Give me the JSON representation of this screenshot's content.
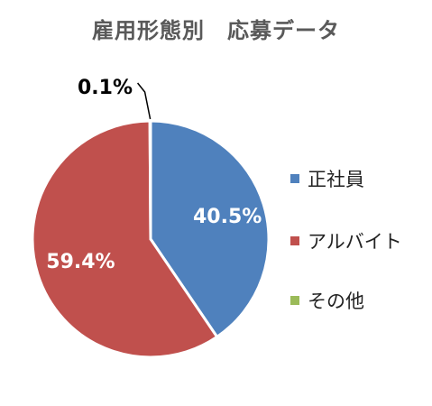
{
  "chart_data": {
    "type": "pie",
    "title": "雇用形態別　応募データ",
    "categories": [
      "正社員",
      "アルバイト",
      "その他"
    ],
    "values": [
      40.5,
      59.4,
      0.1
    ],
    "data_labels": [
      "40.5%",
      "59.4%",
      "0.1%"
    ],
    "colors": [
      "#4F81BD",
      "#C0504D",
      "#9BBB59"
    ],
    "legend_position": "right",
    "start_angle": "top, clockwise"
  }
}
